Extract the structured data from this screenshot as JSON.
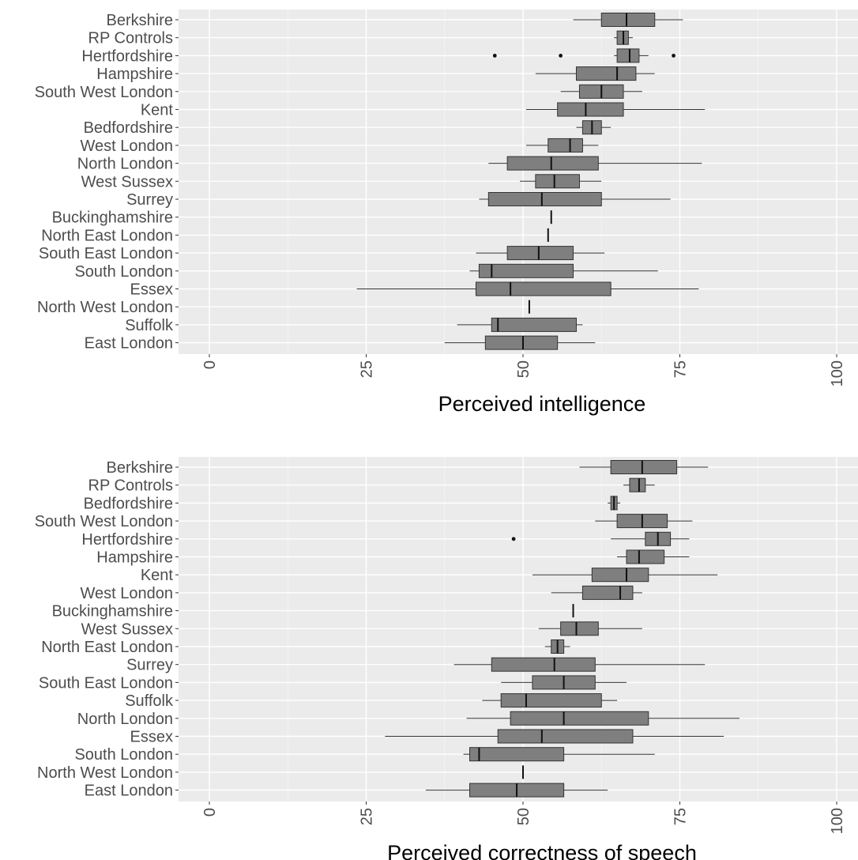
{
  "chart_data": [
    {
      "type": "boxplot",
      "xlabel": "Perceived intelligence",
      "xlim": [
        0,
        100
      ],
      "xticks": [
        "0",
        "25",
        "50",
        "75",
        "100"
      ],
      "xtick_values": [
        0,
        25,
        50,
        75,
        100
      ],
      "grid": true,
      "box_fill": "#7f7f7f",
      "panel_background": "#ebebeb",
      "categories": [
        {
          "name": "Berkshire",
          "whisker_low": 58,
          "q1": 62.5,
          "median": 66.5,
          "q3": 71,
          "whisker_high": 75.5,
          "outliers": []
        },
        {
          "name": "RP Controls",
          "whisker_low": 64.5,
          "q1": 65,
          "median": 66,
          "q3": 66.8,
          "whisker_high": 67.5,
          "outliers": []
        },
        {
          "name": "Hertfordshire",
          "whisker_low": 64.5,
          "q1": 65,
          "median": 67,
          "q3": 68.5,
          "whisker_high": 70,
          "outliers": [
            45.5,
            56,
            74
          ]
        },
        {
          "name": "Hampshire",
          "whisker_low": 52,
          "q1": 58.5,
          "median": 65,
          "q3": 68,
          "whisker_high": 71,
          "outliers": []
        },
        {
          "name": "South West London",
          "whisker_low": 56,
          "q1": 59,
          "median": 62.5,
          "q3": 66,
          "whisker_high": 69,
          "outliers": []
        },
        {
          "name": "Kent",
          "whisker_low": 50.5,
          "q1": 55.5,
          "median": 60,
          "q3": 66,
          "whisker_high": 79,
          "outliers": []
        },
        {
          "name": "Bedfordshire",
          "whisker_low": 58.5,
          "q1": 59.5,
          "median": 61,
          "q3": 62.5,
          "whisker_high": 64,
          "outliers": []
        },
        {
          "name": "West London",
          "whisker_low": 50.5,
          "q1": 54,
          "median": 57.5,
          "q3": 59.5,
          "whisker_high": 62,
          "outliers": []
        },
        {
          "name": "North London",
          "whisker_low": 44.5,
          "q1": 47.5,
          "median": 54.5,
          "q3": 62,
          "whisker_high": 78.5,
          "outliers": []
        },
        {
          "name": "West Sussex",
          "whisker_low": 49.5,
          "q1": 52,
          "median": 55,
          "q3": 59,
          "whisker_high": 62.5,
          "outliers": []
        },
        {
          "name": "Surrey",
          "whisker_low": 43,
          "q1": 44.5,
          "median": 53,
          "q3": 62.5,
          "whisker_high": 73.5,
          "outliers": []
        },
        {
          "name": "Buckinghamshire",
          "whisker_low": 54.5,
          "q1": 54.5,
          "median": 54.5,
          "q3": 54.5,
          "whisker_high": 54.5,
          "outliers": []
        },
        {
          "name": "North East London",
          "whisker_low": 54,
          "q1": 54,
          "median": 54,
          "q3": 54,
          "whisker_high": 54,
          "outliers": []
        },
        {
          "name": "South East London",
          "whisker_low": 42.5,
          "q1": 47.5,
          "median": 52.5,
          "q3": 58,
          "whisker_high": 63,
          "outliers": []
        },
        {
          "name": "South London",
          "whisker_low": 41.5,
          "q1": 43,
          "median": 45,
          "q3": 58,
          "whisker_high": 71.5,
          "outliers": []
        },
        {
          "name": "Essex",
          "whisker_low": 23.5,
          "q1": 42.5,
          "median": 48,
          "q3": 64,
          "whisker_high": 78,
          "outliers": []
        },
        {
          "name": "North West London",
          "whisker_low": 51,
          "q1": 51,
          "median": 51,
          "q3": 51,
          "whisker_high": 51,
          "outliers": []
        },
        {
          "name": "Suffolk",
          "whisker_low": 39.5,
          "q1": 45,
          "median": 46,
          "q3": 58.5,
          "whisker_high": 59.5,
          "outliers": []
        },
        {
          "name": "East London",
          "whisker_low": 37.5,
          "q1": 44,
          "median": 50,
          "q3": 55.5,
          "whisker_high": 61.5,
          "outliers": []
        }
      ]
    },
    {
      "type": "boxplot",
      "xlabel": "Perceived correctness of speech",
      "xlim": [
        0,
        100
      ],
      "xticks": [
        "0",
        "25",
        "50",
        "75",
        "100"
      ],
      "xtick_values": [
        0,
        25,
        50,
        75,
        100
      ],
      "grid": true,
      "box_fill": "#7f7f7f",
      "panel_background": "#ebebeb",
      "categories": [
        {
          "name": "Berkshire",
          "whisker_low": 59,
          "q1": 64,
          "median": 69,
          "q3": 74.5,
          "whisker_high": 79.5,
          "outliers": []
        },
        {
          "name": "RP Controls",
          "whisker_low": 66,
          "q1": 67,
          "median": 68.5,
          "q3": 69.5,
          "whisker_high": 71,
          "outliers": []
        },
        {
          "name": "Bedfordshire",
          "whisker_low": 63.5,
          "q1": 64,
          "median": 64.5,
          "q3": 65,
          "whisker_high": 65.5,
          "outliers": []
        },
        {
          "name": "South West London",
          "whisker_low": 61.5,
          "q1": 65,
          "median": 69,
          "q3": 73,
          "whisker_high": 77,
          "outliers": []
        },
        {
          "name": "Hertfordshire",
          "whisker_low": 64,
          "q1": 69.5,
          "median": 71.5,
          "q3": 73.5,
          "whisker_high": 76.5,
          "outliers": [
            48.5
          ]
        },
        {
          "name": "Hampshire",
          "whisker_low": 65,
          "q1": 66.5,
          "median": 68.5,
          "q3": 72.5,
          "whisker_high": 76.5,
          "outliers": []
        },
        {
          "name": "Kent",
          "whisker_low": 51.5,
          "q1": 61,
          "median": 66.5,
          "q3": 70,
          "whisker_high": 81,
          "outliers": []
        },
        {
          "name": "West London",
          "whisker_low": 54.5,
          "q1": 59.5,
          "median": 65.5,
          "q3": 67.5,
          "whisker_high": 69,
          "outliers": []
        },
        {
          "name": "Buckinghamshire",
          "whisker_low": 58,
          "q1": 58,
          "median": 58,
          "q3": 58,
          "whisker_high": 58,
          "outliers": []
        },
        {
          "name": "West Sussex",
          "whisker_low": 52.5,
          "q1": 56,
          "median": 58.5,
          "q3": 62,
          "whisker_high": 69,
          "outliers": []
        },
        {
          "name": "North East London",
          "whisker_low": 53.5,
          "q1": 54.5,
          "median": 55.5,
          "q3": 56.5,
          "whisker_high": 57.5,
          "outliers": []
        },
        {
          "name": "Surrey",
          "whisker_low": 39,
          "q1": 45,
          "median": 55,
          "q3": 61.5,
          "whisker_high": 79,
          "outliers": []
        },
        {
          "name": "South East London",
          "whisker_low": 46.5,
          "q1": 51.5,
          "median": 56.5,
          "q3": 61.5,
          "whisker_high": 66.5,
          "outliers": []
        },
        {
          "name": "Suffolk",
          "whisker_low": 43.5,
          "q1": 46.5,
          "median": 50.5,
          "q3": 62.5,
          "whisker_high": 65,
          "outliers": []
        },
        {
          "name": "North London",
          "whisker_low": 41,
          "q1": 48,
          "median": 56.5,
          "q3": 70,
          "whisker_high": 84.5,
          "outliers": []
        },
        {
          "name": "Essex",
          "whisker_low": 28,
          "q1": 46,
          "median": 53,
          "q3": 67.5,
          "whisker_high": 82,
          "outliers": []
        },
        {
          "name": "South London",
          "whisker_low": 40.5,
          "q1": 41.5,
          "median": 43,
          "q3": 56.5,
          "whisker_high": 71,
          "outliers": []
        },
        {
          "name": "North West London",
          "whisker_low": 50,
          "q1": 50,
          "median": 50,
          "q3": 50,
          "whisker_high": 50,
          "outliers": []
        },
        {
          "name": "East London",
          "whisker_low": 34.5,
          "q1": 41.5,
          "median": 49,
          "q3": 56.5,
          "whisker_high": 63.5,
          "outliers": []
        }
      ]
    }
  ]
}
